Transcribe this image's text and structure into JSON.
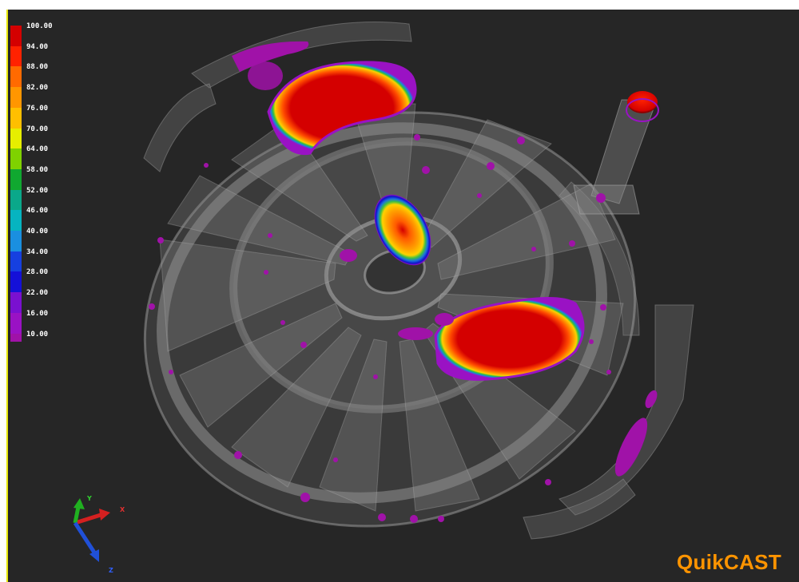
{
  "brand": {
    "name": "QuikCAST",
    "color": "#ff9400"
  },
  "legend": {
    "labels": [
      "100.00",
      "94.00",
      "88.00",
      "82.00",
      "76.00",
      "70.00",
      "64.00",
      "58.00",
      "52.00",
      "46.00",
      "40.00",
      "34.00",
      "28.00",
      "22.00",
      "16.00",
      "10.00"
    ],
    "colors": [
      "#d40000",
      "#ff2200",
      "#ff6a00",
      "#ff9600",
      "#ffbf00",
      "#e6ee00",
      "#7fd200",
      "#10a830",
      "#0aa88a",
      "#06b4c0",
      "#1a8fe0",
      "#1640e0",
      "#1410d8",
      "#7a10d0",
      "#9a12c4",
      "#a012a8"
    ]
  },
  "axes": {
    "x_label": "X",
    "y_label": "Y",
    "z_label": "Z"
  },
  "colors": {
    "background": "#262626",
    "edge_accent": "#e8e800"
  }
}
